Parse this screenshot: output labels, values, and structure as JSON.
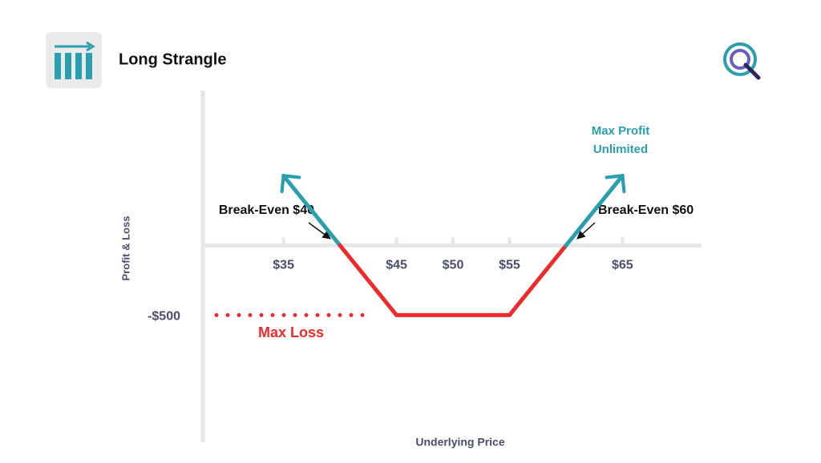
{
  "chart_data": {
    "type": "line",
    "title": "Long Strangle",
    "x_label": "Underlying Price",
    "y_label": "Profit & Loss",
    "series": [
      {
        "color": "#2a9fb0",
        "x": [
          35,
          40
        ],
        "values": [
          500,
          0
        ]
      },
      {
        "color": "#f02a2a",
        "x": [
          40,
          45,
          55,
          60
        ],
        "values": [
          0,
          -500,
          -500,
          0
        ]
      },
      {
        "color": "#2a9fb0",
        "x": [
          60,
          65
        ],
        "values": [
          0,
          500
        ]
      }
    ],
    "xlim": [
      28,
      72
    ],
    "xticks": [
      {
        "value": 35,
        "label": "$35"
      },
      {
        "value": 45,
        "label": "$45"
      },
      {
        "value": 50,
        "label": "$50"
      },
      {
        "value": 55,
        "label": "$55"
      },
      {
        "value": 65,
        "label": "$65"
      }
    ],
    "ylim": [
      -1400,
      1100
    ],
    "yticks": [
      {
        "value": -500,
        "label": "-$500"
      }
    ],
    "annotations": {
      "break_even_low": "Break-Even $40",
      "break_even_high": "Break-Even $60",
      "max_profit": "Max Profit",
      "max_profit_note": "Unlimited",
      "max_loss": "Max Loss"
    }
  }
}
